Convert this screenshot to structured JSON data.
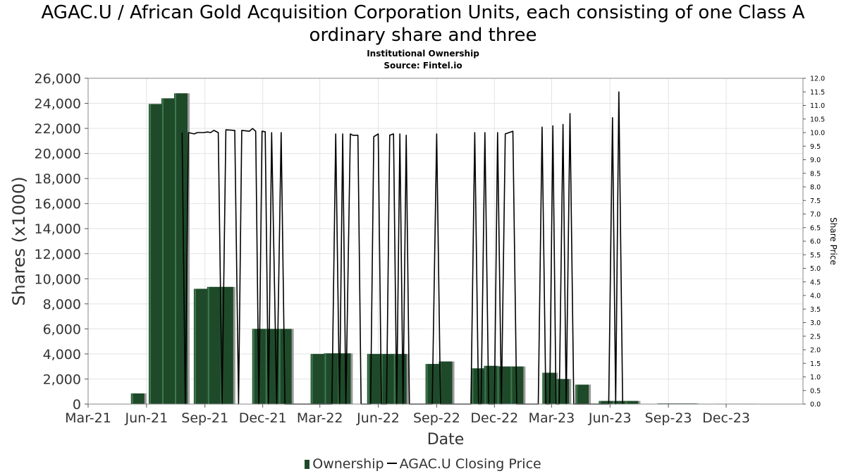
{
  "header": {
    "title_line1": "AGAC.U / African Gold Acquisition Corporation Units, each consisting of one Class A",
    "title_line2": "ordinary share and three",
    "subtitle1": "Institutional Ownership",
    "subtitle2": "Source: Fintel.io"
  },
  "legend": {
    "bar_label": "Ownership",
    "line_label": "AGAC.U Closing Price"
  },
  "colors": {
    "bar": "#1e4a2a",
    "bar_shadow": "#9a9a9a",
    "line": "#000000",
    "grid": "#e3e3e3"
  },
  "chart_data": {
    "type": "bar",
    "title": "AGAC.U / African Gold Acquisition Corporation Units, each consisting of one Class A ordinary share and three",
    "xlabel": "Date",
    "ylabel": "Shares (x1000)",
    "y2label": "Share Price",
    "ylim": [
      0,
      26000
    ],
    "y2lim": [
      0,
      12
    ],
    "xlim": [
      "2021-03-01",
      "2024-03-31"
    ],
    "grid": true,
    "legend_position": "bottom",
    "x_ticks": [
      {
        "label": "Mar-21",
        "date": "2021-03-01"
      },
      {
        "label": "Jun-21",
        "date": "2021-06-01"
      },
      {
        "label": "Sep-21",
        "date": "2021-09-01"
      },
      {
        "label": "Dec-21",
        "date": "2021-12-01"
      },
      {
        "label": "Mar-22",
        "date": "2022-03-01"
      },
      {
        "label": "Jun-22",
        "date": "2022-06-01"
      },
      {
        "label": "Sep-22",
        "date": "2022-09-01"
      },
      {
        "label": "Dec-22",
        "date": "2022-12-01"
      },
      {
        "label": "Mar-23",
        "date": "2023-03-01"
      },
      {
        "label": "Jun-23",
        "date": "2023-06-01"
      },
      {
        "label": "Sep-23",
        "date": "2023-09-01"
      },
      {
        "label": "Dec-23",
        "date": "2023-12-01"
      }
    ],
    "y_ticks": [
      "0",
      "2,000",
      "4,000",
      "6,000",
      "8,000",
      "10,000",
      "12,000",
      "14,000",
      "16,000",
      "18,000",
      "20,000",
      "22,000",
      "24,000",
      "26,000"
    ],
    "y2_ticks": [
      "0.0",
      "0.5",
      "1.0",
      "1.5",
      "2.0",
      "2.5",
      "3.0",
      "3.5",
      "4.0",
      "4.5",
      "5.0",
      "5.5",
      "6.0",
      "6.5",
      "7.0",
      "7.5",
      "8.0",
      "8.5",
      "9.0",
      "9.5",
      "10.0",
      "10.5",
      "11.0",
      "11.5",
      "12.0"
    ],
    "series": [
      {
        "name": "Ownership",
        "type": "bar",
        "axis": "left",
        "points": [
          {
            "date": "2021-05-18",
            "value": 850
          },
          {
            "date": "2021-06-15",
            "value": 23950
          },
          {
            "date": "2021-07-05",
            "value": 24400
          },
          {
            "date": "2021-07-25",
            "value": 24800
          },
          {
            "date": "2021-08-25",
            "value": 9200
          },
          {
            "date": "2021-09-15",
            "value": 9350
          },
          {
            "date": "2021-10-05",
            "value": 9350
          },
          {
            "date": "2021-11-25",
            "value": 6000
          },
          {
            "date": "2021-12-15",
            "value": 6000
          },
          {
            "date": "2022-01-05",
            "value": 6000
          },
          {
            "date": "2022-02-25",
            "value": 4000
          },
          {
            "date": "2022-03-18",
            "value": 4050
          },
          {
            "date": "2022-04-08",
            "value": 4050
          },
          {
            "date": "2022-05-25",
            "value": 4000
          },
          {
            "date": "2022-06-15",
            "value": 4000
          },
          {
            "date": "2022-07-05",
            "value": 4000
          },
          {
            "date": "2022-08-25",
            "value": 3200
          },
          {
            "date": "2022-09-15",
            "value": 3400
          },
          {
            "date": "2022-11-05",
            "value": 2850
          },
          {
            "date": "2022-11-25",
            "value": 3050
          },
          {
            "date": "2022-12-15",
            "value": 3000
          },
          {
            "date": "2023-01-05",
            "value": 3000
          },
          {
            "date": "2023-02-25",
            "value": 2500
          },
          {
            "date": "2023-03-18",
            "value": 2000
          },
          {
            "date": "2023-04-18",
            "value": 1550
          },
          {
            "date": "2023-05-25",
            "value": 250
          },
          {
            "date": "2023-06-15",
            "value": 250
          },
          {
            "date": "2023-07-05",
            "value": 250
          },
          {
            "date": "2023-08-25",
            "value": 50
          },
          {
            "date": "2023-09-15",
            "value": 50
          },
          {
            "date": "2023-10-05",
            "value": 50
          },
          {
            "date": "2023-11-25",
            "value": 30
          },
          {
            "date": "2023-12-15",
            "value": 30
          },
          {
            "date": "2024-01-05",
            "value": 30
          }
        ]
      },
      {
        "name": "AGAC.U Closing Price",
        "type": "line",
        "axis": "right",
        "points": [
          {
            "date": "2021-07-27",
            "value": 10.0
          },
          {
            "date": "2021-08-01",
            "value": 0.0
          },
          {
            "date": "2021-08-06",
            "value": 10.0
          },
          {
            "date": "2021-08-15",
            "value": 9.95
          },
          {
            "date": "2021-08-20",
            "value": 10.0
          },
          {
            "date": "2021-08-30",
            "value": 10.0
          },
          {
            "date": "2021-09-05",
            "value": 10.02
          },
          {
            "date": "2021-09-10",
            "value": 10.0
          },
          {
            "date": "2021-09-15",
            "value": 10.08
          },
          {
            "date": "2021-09-22",
            "value": 10.0
          },
          {
            "date": "2021-09-28",
            "value": 0.0
          },
          {
            "date": "2021-10-04",
            "value": 10.1
          },
          {
            "date": "2021-10-18",
            "value": 10.08
          },
          {
            "date": "2021-10-24",
            "value": 0.0
          },
          {
            "date": "2021-10-29",
            "value": 10.08
          },
          {
            "date": "2021-11-10",
            "value": 10.05
          },
          {
            "date": "2021-11-15",
            "value": 10.15
          },
          {
            "date": "2021-11-20",
            "value": 10.05
          },
          {
            "date": "2021-11-25",
            "value": 0.0
          },
          {
            "date": "2021-11-30",
            "value": 10.05
          },
          {
            "date": "2021-12-05",
            "value": 10.03
          },
          {
            "date": "2021-12-10",
            "value": 0.0
          },
          {
            "date": "2021-12-15",
            "value": 10.0
          },
          {
            "date": "2021-12-23",
            "value": 0.0
          },
          {
            "date": "2021-12-30",
            "value": 10.0
          },
          {
            "date": "2022-01-05",
            "value": 0.0
          },
          {
            "date": "2022-03-20",
            "value": 0.0
          },
          {
            "date": "2022-03-26",
            "value": 9.95
          },
          {
            "date": "2022-04-01",
            "value": 0.0
          },
          {
            "date": "2022-04-06",
            "value": 9.95
          },
          {
            "date": "2022-04-11",
            "value": 0.0
          },
          {
            "date": "2022-04-18",
            "value": 9.95
          },
          {
            "date": "2022-04-22",
            "value": 9.9
          },
          {
            "date": "2022-04-30",
            "value": 9.9
          },
          {
            "date": "2022-05-05",
            "value": 0.0
          },
          {
            "date": "2022-05-20",
            "value": 0.0
          },
          {
            "date": "2022-05-25",
            "value": 9.85
          },
          {
            "date": "2022-06-01",
            "value": 9.95
          },
          {
            "date": "2022-06-06",
            "value": 0.0
          },
          {
            "date": "2022-06-14",
            "value": 0.0
          },
          {
            "date": "2022-06-19",
            "value": 9.9
          },
          {
            "date": "2022-06-25",
            "value": 9.95
          },
          {
            "date": "2022-06-30",
            "value": 0.0
          },
          {
            "date": "2022-07-05",
            "value": 9.95
          },
          {
            "date": "2022-07-10",
            "value": 0.0
          },
          {
            "date": "2022-07-15",
            "value": 9.9
          },
          {
            "date": "2022-07-20",
            "value": 0.0
          },
          {
            "date": "2022-08-25",
            "value": 0.0
          },
          {
            "date": "2022-09-01",
            "value": 9.95
          },
          {
            "date": "2022-09-07",
            "value": 0.0
          },
          {
            "date": "2022-10-25",
            "value": 0.0
          },
          {
            "date": "2022-10-31",
            "value": 10.0
          },
          {
            "date": "2022-11-06",
            "value": 0.0
          },
          {
            "date": "2022-11-10",
            "value": 0.0
          },
          {
            "date": "2022-11-16",
            "value": 10.0
          },
          {
            "date": "2022-11-22",
            "value": 0.0
          },
          {
            "date": "2022-12-01",
            "value": 0.0
          },
          {
            "date": "2022-12-06",
            "value": 10.0
          },
          {
            "date": "2022-12-12",
            "value": 0.0
          },
          {
            "date": "2022-12-18",
            "value": 9.95
          },
          {
            "date": "2022-12-24",
            "value": 10.0
          },
          {
            "date": "2022-12-30",
            "value": 10.05
          },
          {
            "date": "2023-01-05",
            "value": 0.0
          },
          {
            "date": "2023-02-08",
            "value": 0.0
          },
          {
            "date": "2023-02-14",
            "value": 10.2
          },
          {
            "date": "2023-02-20",
            "value": 0.0
          },
          {
            "date": "2023-02-26",
            "value": 0.0
          },
          {
            "date": "2023-03-03",
            "value": 10.25
          },
          {
            "date": "2023-03-08",
            "value": 0.0
          },
          {
            "date": "2023-03-13",
            "value": 0.0
          },
          {
            "date": "2023-03-19",
            "value": 10.3
          },
          {
            "date": "2023-03-24",
            "value": 0.0
          },
          {
            "date": "2023-03-30",
            "value": 10.7
          },
          {
            "date": "2023-04-05",
            "value": 0.0
          },
          {
            "date": "2023-05-30",
            "value": 0.0
          },
          {
            "date": "2023-06-05",
            "value": 10.55
          },
          {
            "date": "2023-06-10",
            "value": 0.0
          },
          {
            "date": "2023-06-15",
            "value": 11.5
          },
          {
            "date": "2023-06-21",
            "value": 0.0
          }
        ]
      }
    ]
  }
}
